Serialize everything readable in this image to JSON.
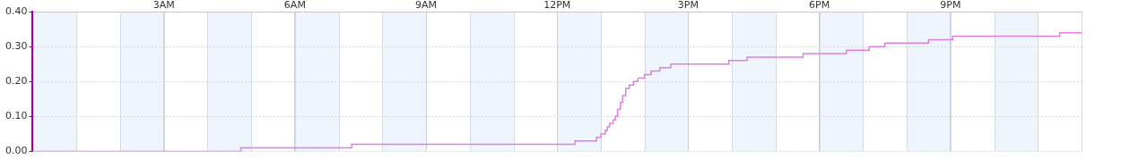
{
  "chart_data": {
    "type": "line",
    "x": [
      0,
      4.76,
      7.3,
      12.41,
      12.9,
      13.0,
      13.1,
      13.15,
      13.2,
      13.28,
      13.33,
      13.38,
      13.45,
      13.5,
      13.57,
      13.65,
      13.75,
      13.85,
      14.0,
      14.15,
      14.35,
      14.6,
      15.93,
      16.35,
      17.63,
      18.62,
      19.14,
      19.5,
      20.5,
      21.05,
      23.5,
      24
    ],
    "values": [
      0,
      0.01,
      0.02,
      0.03,
      0.04,
      0.05,
      0.06,
      0.07,
      0.08,
      0.09,
      0.1,
      0.12,
      0.14,
      0.16,
      0.18,
      0.19,
      0.2,
      0.21,
      0.22,
      0.23,
      0.24,
      0.25,
      0.26,
      0.27,
      0.28,
      0.29,
      0.3,
      0.31,
      0.32,
      0.33,
      0.34,
      0.34
    ],
    "color": "#e07ee0",
    "line_style": "step",
    "xlim": [
      0,
      24
    ],
    "xticks": [
      {
        "value": 3,
        "label": "3AM"
      },
      {
        "value": 6,
        "label": "6AM"
      },
      {
        "value": 9,
        "label": "9AM"
      },
      {
        "value": 12,
        "label": "12PM"
      },
      {
        "value": 15,
        "label": "3PM"
      },
      {
        "value": 18,
        "label": "6PM"
      },
      {
        "value": 21,
        "label": "9PM"
      }
    ],
    "ylim": [
      0,
      0.4
    ],
    "yticks": [
      {
        "value": 0,
        "label": "0.00"
      },
      {
        "value": 0.1,
        "label": "0.10"
      },
      {
        "value": 0.2,
        "label": "0.20"
      },
      {
        "value": 0.3,
        "label": "0.30"
      },
      {
        "value": 0.4,
        "label": "0.40"
      }
    ],
    "grid": true
  }
}
